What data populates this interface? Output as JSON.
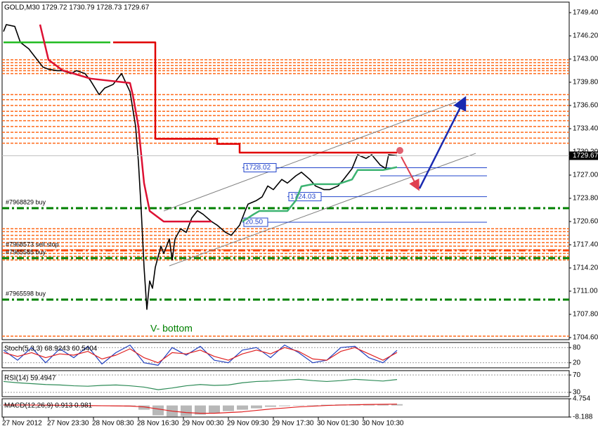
{
  "chart_data": [
    {
      "type": "line",
      "title": "GOLD,M30  1729.72 1730.79 1728.73 1729.67",
      "xlim": [
        -0.5,
        201.25
      ],
      "ylim": [
        1704.31,
        1750.85
      ],
      "yticks": [
        {
          "value": 1749.4,
          "label": "1749.40"
        },
        {
          "value": 1746.2,
          "label": "1746.20"
        },
        {
          "value": 1743.0,
          "label": "1743.00"
        },
        {
          "value": 1739.8,
          "label": "1739.80"
        },
        {
          "value": 1736.6,
          "label": "1736.60"
        },
        {
          "value": 1733.4,
          "label": "1733.40"
        },
        {
          "value": 1730.2,
          "label": "1730.20"
        },
        {
          "value": 1727.0,
          "label": "1727.00"
        },
        {
          "value": 1723.8,
          "label": "1723.80"
        },
        {
          "value": 1720.6,
          "label": "1720.60"
        },
        {
          "value": 1717.4,
          "label": "1717.40"
        },
        {
          "value": 1714.2,
          "label": "1714.20"
        },
        {
          "value": 1711.0,
          "label": "1711.00"
        },
        {
          "value": 1707.8,
          "label": "1707.80"
        },
        {
          "value": 1704.6,
          "label": "1704.60"
        }
      ],
      "xticks": [
        {
          "value": 0,
          "label": "27 Nov 2012"
        },
        {
          "value": 16,
          "label": "27 Nov 23:30"
        },
        {
          "value": 32,
          "label": "28 Nov 08:30"
        },
        {
          "value": 48,
          "label": "28 Nov 16:30"
        },
        {
          "value": 64,
          "label": "29 Nov 00:30"
        },
        {
          "value": 80,
          "label": "29 Nov 09:30"
        },
        {
          "value": 96,
          "label": "29 Nov 17:30"
        },
        {
          "value": 112,
          "label": "30 Nov 01:30"
        },
        {
          "value": 128,
          "label": "30 Nov 10:30"
        }
      ],
      "last_price": 1729.67,
      "orange_levels": [
        1742.9,
        1742.5,
        1742.1,
        1741.7,
        1741.4,
        1741.0,
        1738.1,
        1737.4,
        1736.6,
        1735.8,
        1735.2,
        1734.5,
        1733.7,
        1732.9,
        1732.1,
        1731.4,
        1719.6,
        1719.2,
        1718.7,
        1718.2,
        1717.7,
        1717.2,
        1716.7,
        1716.2,
        1715.8,
        1715.3,
        1704.8
      ],
      "orange_color": "#ff6a1a",
      "levels": [
        {
          "price": 1722.44,
          "label": "#7968829 buy",
          "color": "#008000"
        },
        {
          "price": 1716.62,
          "label": "#7968573 sell stop",
          "color": "#ff4500"
        },
        {
          "price": 1715.56,
          "label": "#7965585 buy",
          "color": "#008000"
        },
        {
          "price": 1709.84,
          "label": "#7965598 buy",
          "color": "#008000"
        }
      ],
      "trendlines": [
        {
          "x": [
            85,
            172
          ],
          "price": 1728.02,
          "label": "1728.02",
          "color": "#2244cc"
        },
        {
          "x": [
            134,
            172
          ],
          "price": 1726.9,
          "color": "#2244cc"
        },
        {
          "x": [
            101,
            172
          ],
          "price": 1724.03,
          "label": "1724.03",
          "color": "#2244cc"
        },
        {
          "x": [
            85,
            172
          ],
          "price": 1720.5,
          "label": "20.50",
          "color": "#2244cc"
        }
      ],
      "channel": [
        {
          "x": [
            57,
            161
          ],
          "values": [
            1722.05,
            1737.08
          ],
          "color": "#808080"
        },
        {
          "x": [
            59,
            168
          ],
          "values": [
            1714.49,
            1730.0
          ],
          "color": "#808080"
        }
      ],
      "series": [
        {
          "color": "#000000",
          "x": [
            0,
            1,
            4,
            6,
            9,
            11,
            14,
            16,
            19,
            21,
            24,
            26,
            29,
            31,
            34,
            36,
            39,
            41,
            42,
            45,
            47,
            48,
            49,
            50,
            51,
            52,
            53,
            54,
            56,
            57,
            59,
            60,
            61,
            63,
            65,
            67,
            69,
            71,
            74,
            76,
            79,
            81,
            84,
            86,
            87,
            90,
            92,
            94,
            96,
            99,
            101,
            104,
            106,
            109,
            111,
            114,
            116,
            119,
            121,
            124,
            126,
            129,
            131,
            134,
            136,
            137,
            140
          ],
          "values": [
            1746.8,
            1747.75,
            1747.5,
            1745.3,
            1744.4,
            1743.4,
            1741.9,
            1741.6,
            1741.4,
            1741.4,
            1741.0,
            1741.4,
            1741.0,
            1740.0,
            1738.1,
            1739.0,
            1739.5,
            1740.5,
            1741.0,
            1738.5,
            1733.7,
            1728.8,
            1722.1,
            1714.3,
            1708.5,
            1712.4,
            1711.4,
            1714.3,
            1717.2,
            1716.2,
            1718.2,
            1715.3,
            1718.2,
            1719.6,
            1719.1,
            1721.1,
            1722.1,
            1721.6,
            1720.6,
            1720.1,
            1719.1,
            1718.7,
            1720.1,
            1722.1,
            1723.0,
            1723.5,
            1724.0,
            1725.5,
            1725.0,
            1726.4,
            1725.9,
            1726.9,
            1727.4,
            1726.4,
            1725.5,
            1725.0,
            1725.0,
            1725.5,
            1726.4,
            1727.9,
            1729.8,
            1729.3,
            1729.8,
            1728.4,
            1727.9,
            1729.8,
            1729.67
          ]
        },
        {
          "color": "#e00000",
          "x": [
            39,
            54,
            54,
            76,
            76,
            84,
            84,
            140
          ],
          "values": [
            1745.3,
            1745.3,
            1732.0,
            1732.0,
            1731.3,
            1731.3,
            1730.1,
            1730.1
          ]
        },
        {
          "color": "#22bb22",
          "x": [
            0,
            38
          ],
          "values": [
            1745.3,
            1745.3
          ]
        },
        {
          "color": "#dd1133",
          "x": [
            13,
            16,
            21,
            31,
            45,
            46,
            48,
            50,
            52,
            57,
            74
          ],
          "values": [
            1747.75,
            1742.9,
            1741.45,
            1740.3,
            1739.7,
            1738.05,
            1733.7,
            1725.9,
            1722.05,
            1720.6,
            1720.6
          ]
        },
        {
          "color": "#3cb371",
          "x": [
            85,
            89,
            91,
            101,
            104,
            106,
            110,
            119,
            124,
            126,
            135,
            140
          ],
          "values": [
            1720.6,
            1721.6,
            1722.05,
            1722.05,
            1723.5,
            1725.45,
            1725.75,
            1725.75,
            1726.4,
            1727.7,
            1727.7,
            1728.1
          ]
        }
      ],
      "annotations": [
        "V- bottom"
      ]
    },
    {
      "type": "line",
      "title": "Stoch(5,3,3) 68.9243 60.5404",
      "xlim": [
        -0.5,
        201.25
      ],
      "ylim": [
        0,
        100
      ],
      "yticks": [
        80,
        20
      ],
      "grid": true,
      "series": [
        {
          "color": "#1f3fbf",
          "x": [
            0,
            5,
            10,
            15,
            20,
            25,
            30,
            35,
            40,
            45,
            50,
            55,
            60,
            65,
            70,
            75,
            80,
            85,
            90,
            95,
            100,
            105,
            110,
            115,
            120,
            125,
            130,
            135,
            140
          ],
          "values": [
            70,
            30,
            80,
            20,
            75,
            40,
            85,
            15,
            60,
            90,
            20,
            10,
            80,
            50,
            85,
            30,
            20,
            70,
            80,
            40,
            90,
            60,
            20,
            30,
            80,
            85,
            40,
            20,
            68.9243
          ]
        },
        {
          "color": "#e02020",
          "x": [
            0,
            5,
            10,
            15,
            20,
            25,
            30,
            35,
            40,
            45,
            50,
            55,
            60,
            65,
            70,
            75,
            80,
            85,
            90,
            95,
            100,
            105,
            110,
            115,
            120,
            125,
            130,
            135,
            140
          ],
          "values": [
            60,
            45,
            60,
            40,
            55,
            50,
            65,
            35,
            50,
            75,
            40,
            20,
            60,
            55,
            70,
            45,
            30,
            55,
            70,
            55,
            80,
            65,
            35,
            30,
            65,
            80,
            55,
            30,
            60.5404
          ]
        }
      ]
    },
    {
      "type": "line",
      "title": "RSI(14) 59.4947",
      "xlim": [
        -0.5,
        201.25
      ],
      "ylim": [
        20,
        80
      ],
      "yticks": [
        70,
        30
      ],
      "grid": true,
      "series": [
        {
          "color": "#2e8b57",
          "x": [
            0,
            5,
            10,
            15,
            20,
            25,
            30,
            35,
            40,
            45,
            50,
            55,
            60,
            65,
            70,
            75,
            80,
            85,
            90,
            95,
            100,
            105,
            110,
            115,
            120,
            125,
            130,
            135,
            140
          ],
          "values": [
            55,
            52,
            50,
            48,
            47,
            45,
            44,
            46,
            47,
            45,
            42,
            36,
            40,
            45,
            48,
            46,
            47,
            52,
            55,
            56,
            58,
            60,
            57,
            55,
            57,
            60,
            58,
            56,
            59.4947
          ]
        }
      ]
    },
    {
      "type": "bar",
      "title": "MACD(12,26,9) 0.913 0.981",
      "xlim": [
        -0.5,
        201.25
      ],
      "ylim": [
        -8.188,
        4.754
      ],
      "yticks": [
        4.754,
        -8.188
      ],
      "series": [
        {
          "type": "bar",
          "color": "#b8b8b8",
          "x": [
            0,
            5,
            10,
            15,
            20,
            25,
            30,
            35,
            40,
            45,
            50,
            55,
            60,
            65,
            70,
            75,
            80,
            85,
            90,
            95,
            100,
            105,
            110,
            115,
            120,
            125,
            130,
            135,
            140
          ],
          "values": [
            0.5,
            0.3,
            0.2,
            0,
            -0.2,
            -0.3,
            -0.4,
            -0.5,
            -0.6,
            -0.8,
            -3,
            -7,
            -8,
            -7.5,
            -6.5,
            -5.5,
            -4,
            -3,
            -2,
            -1,
            -0.5,
            0,
            0.3,
            0.5,
            0.7,
            0.9,
            1,
            0.9,
            0.913
          ]
        },
        {
          "type": "line",
          "color": "#e02020",
          "x": [
            0,
            5,
            10,
            15,
            20,
            25,
            30,
            35,
            40,
            45,
            50,
            55,
            60,
            65,
            70,
            75,
            80,
            85,
            90,
            95,
            100,
            105,
            110,
            115,
            120,
            125,
            130,
            135,
            140
          ],
          "values": [
            0.4,
            0.35,
            0.3,
            0.2,
            0.1,
            0,
            -0.1,
            -0.2,
            -0.3,
            -0.4,
            -1,
            -2.5,
            -4,
            -5,
            -5.5,
            -5.5,
            -5,
            -4.5,
            -3.5,
            -2.5,
            -1.8,
            -1,
            -0.5,
            0,
            0.3,
            0.5,
            0.7,
            0.85,
            0.981
          ]
        }
      ]
    }
  ]
}
